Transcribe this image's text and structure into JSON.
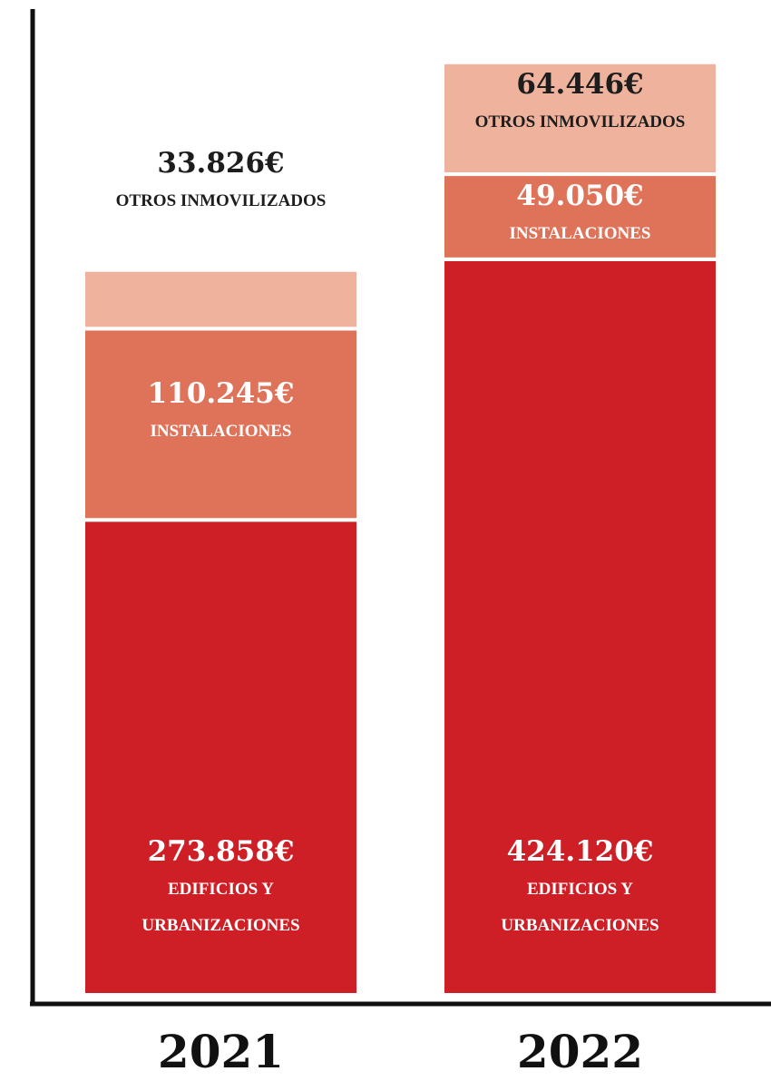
{
  "chart_data": {
    "type": "stacked_bar",
    "categories": [
      "2021",
      "2022"
    ],
    "series": [
      {
        "name": "EDIFICIOS Y URBANIZACIONES",
        "color": "#cf1f26",
        "values": [
          273858,
          424120
        ],
        "value_labels": [
          "273.858€",
          "424.120€"
        ]
      },
      {
        "name": "INSTALACIONES",
        "color": "#de735a",
        "values": [
          110245,
          49050
        ],
        "value_labels": [
          "110.245€",
          "49.050€"
        ]
      },
      {
        "name": "OTROS INMOVILIZADOS",
        "color": "#efb39d",
        "values": [
          33826,
          64446
        ],
        "value_labels": [
          "33.826€",
          "64.446€"
        ]
      }
    ],
    "ylim": [
      0,
      560000
    ]
  }
}
